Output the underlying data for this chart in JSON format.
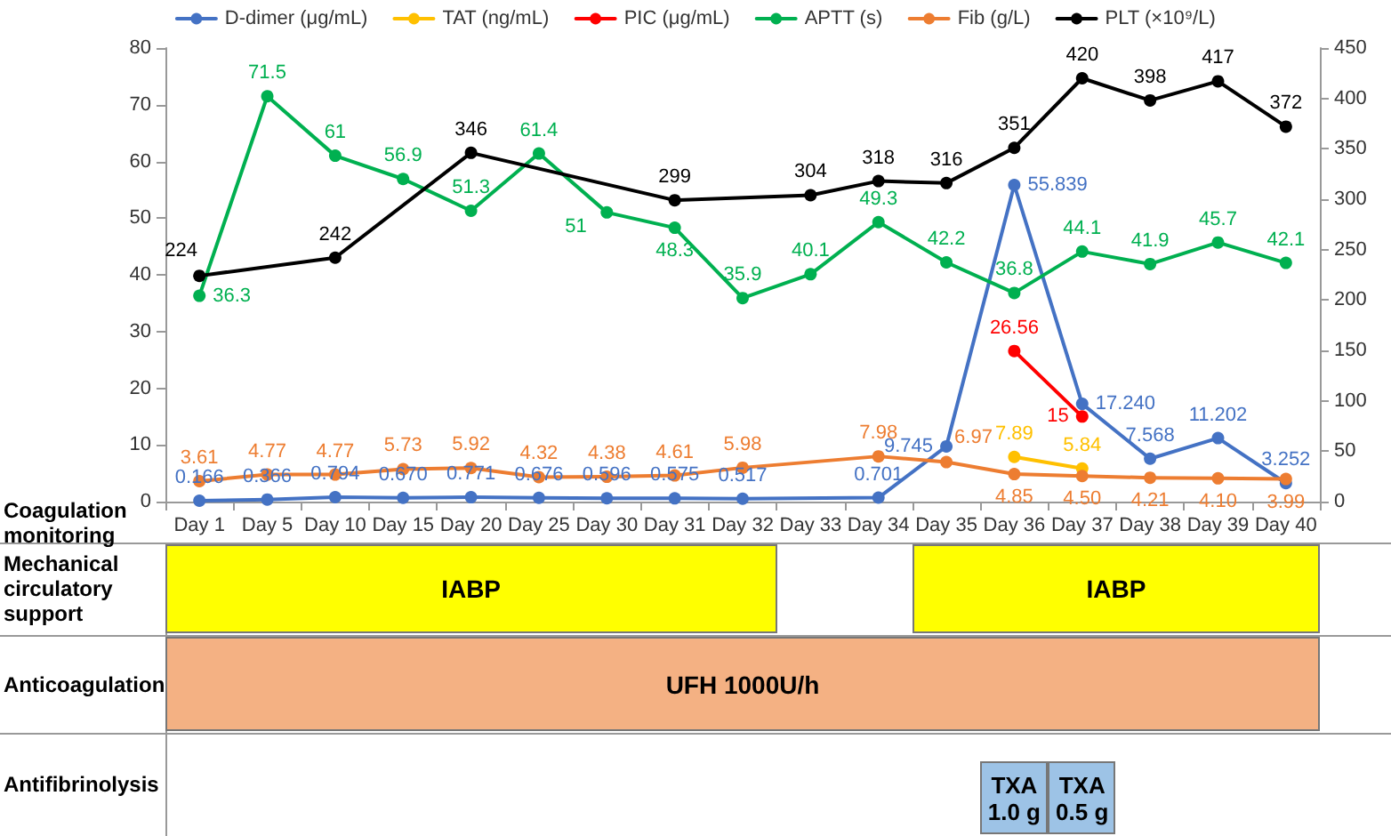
{
  "chart_data": {
    "type": "line",
    "categories": [
      "Day 1",
      "Day 5",
      "Day 10",
      "Day 15",
      "Day 20",
      "Day 25",
      "Day 30",
      "Day 31",
      "Day 32",
      "Day 33",
      "Day 34",
      "Day 35",
      "Day 36",
      "Day 37",
      "Day 38",
      "Day 39",
      "Day 40"
    ],
    "series": [
      {
        "name": "D-dimer (μg/mL)",
        "color": "#4472c4",
        "values": [
          0.166,
          0.366,
          0.794,
          0.67,
          0.771,
          0.676,
          0.596,
          0.575,
          0.517,
          null,
          0.701,
          9.745,
          55.839,
          17.24,
          7.568,
          11.202,
          3.252
        ],
        "value_labels": [
          "0.166",
          "0.366",
          "0.794",
          "0.670",
          "0.771",
          "0.676",
          "0.596",
          "0.575",
          "0.517",
          null,
          "0.701",
          "9.745",
          "55.839",
          "17.240",
          "7.568",
          "11.202",
          "3.252"
        ]
      },
      {
        "name": "TAT (ng/mL)",
        "color": "#ffc000",
        "values": [
          null,
          null,
          null,
          null,
          null,
          null,
          null,
          null,
          null,
          null,
          null,
          null,
          7.89,
          5.84,
          null,
          null,
          null
        ],
        "value_labels": [
          null,
          null,
          null,
          null,
          null,
          null,
          null,
          null,
          null,
          null,
          null,
          null,
          "7.89",
          "5.84",
          null,
          null,
          null
        ]
      },
      {
        "name": "PIC (μg/mL)",
        "color": "#ff0000",
        "values": [
          null,
          null,
          null,
          null,
          null,
          null,
          null,
          null,
          null,
          null,
          null,
          null,
          26.56,
          15,
          null,
          null,
          null
        ],
        "value_labels": [
          null,
          null,
          null,
          null,
          null,
          null,
          null,
          null,
          null,
          null,
          null,
          null,
          "26.56",
          "15",
          null,
          null,
          null
        ]
      },
      {
        "name": "APTT (s)",
        "color": "#00b050",
        "values": [
          36.3,
          71.5,
          61,
          56.9,
          51.3,
          61.4,
          51,
          48.3,
          35.9,
          40.1,
          49.3,
          42.2,
          36.8,
          44.1,
          41.9,
          45.7,
          42.1
        ],
        "value_labels": [
          "36.3",
          "71.5",
          "61",
          "56.9",
          "51.3",
          "61.4",
          "51",
          "48.3",
          "35.9",
          "40.1",
          "49.3",
          "42.2",
          "36.8",
          "44.1",
          "41.9",
          "45.7",
          "42.1"
        ]
      },
      {
        "name": "Fib (g/L)",
        "color": "#ed7d31",
        "values": [
          3.61,
          4.77,
          4.77,
          5.73,
          5.92,
          4.32,
          4.38,
          4.61,
          5.98,
          null,
          7.98,
          6.97,
          4.85,
          4.5,
          4.21,
          4.1,
          3.99
        ],
        "value_labels": [
          "3.61",
          "4.77",
          "4.77",
          "5.73",
          "5.92",
          "4.32",
          "4.38",
          "4.61",
          "5.98",
          null,
          "7.98",
          "6.97",
          "4.85",
          "4.50",
          "4.21",
          "4.10",
          "3.99"
        ]
      },
      {
        "name": "PLT (×10⁹/L)",
        "color": "#000000",
        "axis": "y2",
        "values": [
          224,
          null,
          242,
          null,
          346,
          null,
          null,
          299,
          null,
          304,
          318,
          316,
          351,
          420,
          398,
          417,
          372
        ],
        "value_labels": [
          "224",
          null,
          "242",
          null,
          "346",
          null,
          null,
          "299",
          null,
          "304",
          "318",
          "316",
          "351",
          "420",
          "398",
          "417",
          "372"
        ]
      }
    ],
    "ylim": [
      0,
      80
    ],
    "yticks": [
      0,
      10,
      20,
      30,
      40,
      50,
      60,
      70,
      80
    ],
    "y2lim": [
      0,
      450
    ],
    "y2ticks": [
      0,
      50,
      100,
      150,
      200,
      250,
      300,
      350,
      400,
      450
    ],
    "legend": "top",
    "grid": false,
    "marker": "circle",
    "annotations": [
      "Coagulation monitoring",
      "Mechanical circulatory support",
      "IABP",
      "IABP",
      "Anticoagulation",
      "UFH 1000U/h",
      "Antifibrinolysis",
      "TXA 1.0 g",
      "TXA 0.5 g"
    ]
  }
}
